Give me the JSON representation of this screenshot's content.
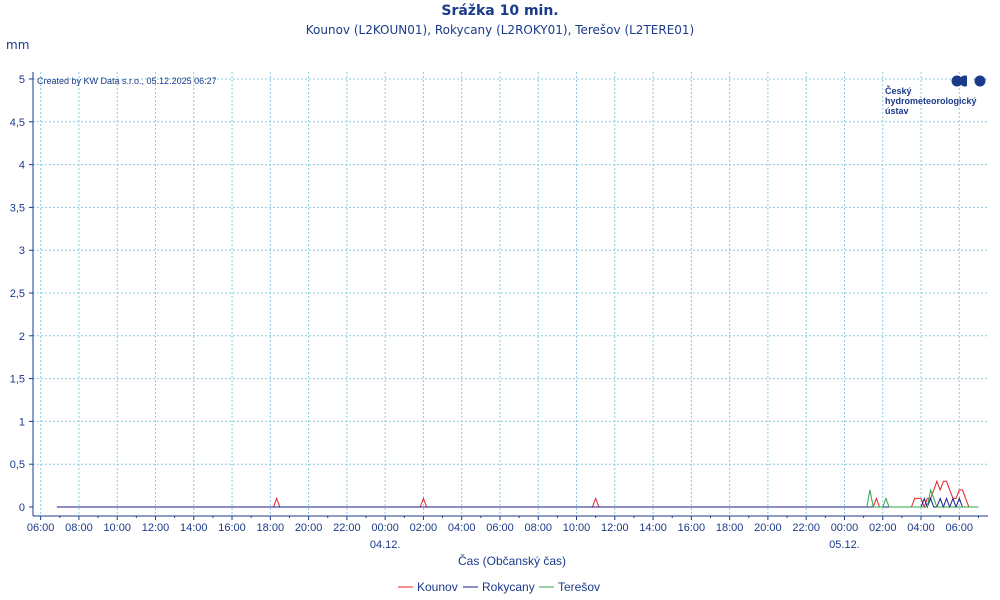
{
  "chart_data": {
    "type": "line",
    "title": "Srážka 10 min.",
    "subtitle": "Kounov (L2KOUN01), Rokycany (L2ROKY01), Terešov (L2TERE01)",
    "ylabel": "mm",
    "xlabel": "Čas (Občanský čas)",
    "credit": "Created by KW Data s.r.o., 05.12.2025 06:27",
    "logo_text": [
      "Český",
      "hydrometeorologický",
      "ústav"
    ],
    "ylim": [
      0,
      5
    ],
    "y_ticks": [
      0,
      0.5,
      1,
      1.5,
      2,
      2.5,
      3,
      3.5,
      4,
      4.5,
      5
    ],
    "y_tick_labels": [
      "0",
      "0,5",
      "1",
      "1,5",
      "2",
      "2,5",
      "3",
      "3,5",
      "4",
      "4,5",
      "5"
    ],
    "x_range_hours": [
      -0.4,
      49.5
    ],
    "x_tick_labels": [
      "06:00",
      "08:00",
      "10:00",
      "12:00",
      "14:00",
      "16:00",
      "18:00",
      "20:00",
      "22:00",
      "00:00",
      "02:00",
      "04:00",
      "06:00",
      "08:00",
      "10:00",
      "12:00",
      "14:00",
      "16:00",
      "18:00",
      "20:00",
      "22:00",
      "00:00",
      "02:00",
      "04:00",
      "06:00"
    ],
    "date_labels": [
      {
        "text": "04.12.",
        "tick_index": 9
      },
      {
        "text": "05.12.",
        "tick_index": 21
      }
    ],
    "grid": true,
    "legend_position": "bottom",
    "series": [
      {
        "name": "Kounov",
        "color": "#e8202a",
        "points": [
          [
            0.85,
            0
          ],
          [
            12.17,
            0
          ],
          [
            12.33,
            0.1
          ],
          [
            12.5,
            0
          ],
          [
            19.83,
            0
          ],
          [
            20,
            0.1
          ],
          [
            20.17,
            0
          ],
          [
            28.83,
            0
          ],
          [
            29,
            0.1
          ],
          [
            29.17,
            0
          ],
          [
            43.5,
            0
          ],
          [
            43.67,
            0.1
          ],
          [
            43.83,
            0
          ],
          [
            45.5,
            0
          ],
          [
            45.67,
            0.1
          ],
          [
            46,
            0.1
          ],
          [
            46.17,
            0
          ],
          [
            46.33,
            0.1
          ],
          [
            46.5,
            0.1
          ],
          [
            46.67,
            0.2
          ],
          [
            46.83,
            0.3
          ],
          [
            47,
            0.2
          ],
          [
            47.17,
            0.3
          ],
          [
            47.33,
            0.3
          ],
          [
            47.5,
            0.2
          ],
          [
            47.67,
            0.1
          ],
          [
            47.83,
            0.1
          ],
          [
            48,
            0.2
          ],
          [
            48.17,
            0.2
          ],
          [
            48.33,
            0.1
          ],
          [
            48.5,
            0
          ],
          [
            48.67,
            0
          ],
          [
            48.83,
            0
          ],
          [
            49,
            0
          ]
        ]
      },
      {
        "name": "Rokycany",
        "color": "#1c1c8c",
        "points": [
          [
            0.85,
            0
          ],
          [
            46,
            0
          ],
          [
            46.17,
            0.1
          ],
          [
            46.33,
            0
          ],
          [
            46.5,
            0.1
          ],
          [
            46.67,
            0
          ],
          [
            46.83,
            0
          ],
          [
            47,
            0.1
          ],
          [
            47.17,
            0
          ],
          [
            47.33,
            0.1
          ],
          [
            47.5,
            0
          ],
          [
            47.67,
            0.1
          ],
          [
            47.83,
            0
          ],
          [
            48,
            0.1
          ],
          [
            48.17,
            0
          ],
          [
            48.33,
            0
          ],
          [
            49,
            0
          ]
        ]
      },
      {
        "name": "Terešov",
        "color": "#2aa84a",
        "points": [
          [
            43.17,
            0
          ],
          [
            43.33,
            0.2
          ],
          [
            43.5,
            0
          ],
          [
            44,
            0
          ],
          [
            44.17,
            0.1
          ],
          [
            44.33,
            0
          ],
          [
            46.33,
            0
          ],
          [
            46.5,
            0.2
          ],
          [
            46.67,
            0.1
          ],
          [
            46.83,
            0
          ],
          [
            49,
            0
          ]
        ]
      }
    ]
  }
}
